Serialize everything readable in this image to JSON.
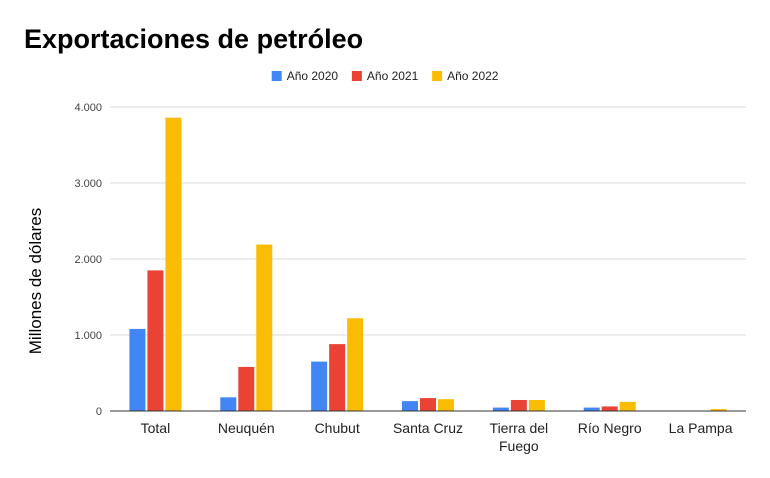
{
  "chart_data": {
    "type": "bar",
    "title": "Exportaciones de petróleo",
    "xlabel": "",
    "ylabel": "Millones de dólares",
    "ylim": [
      0,
      4000
    ],
    "yticks": [
      "0",
      "1.000",
      "2.000",
      "3.000",
      "4.000"
    ],
    "grid": true,
    "legend_position": "top-center",
    "categories": [
      [
        "Total"
      ],
      [
        "Neuquén"
      ],
      [
        "Chubut"
      ],
      [
        "Santa Cruz"
      ],
      [
        "Tierra del",
        "Fuego"
      ],
      [
        "Río Negro"
      ],
      [
        "La Pampa"
      ]
    ],
    "series": [
      {
        "name": "Año 2020",
        "color": "#4285f4",
        "values": [
          1080,
          180,
          650,
          130,
          45,
          45,
          5
        ]
      },
      {
        "name": "Año 2021",
        "color": "#ea4335",
        "values": [
          1850,
          580,
          880,
          170,
          145,
          60,
          5
        ]
      },
      {
        "name": "Año 2022",
        "color": "#fbbc04",
        "values": [
          3860,
          2190,
          1220,
          155,
          145,
          120,
          25
        ]
      }
    ]
  }
}
